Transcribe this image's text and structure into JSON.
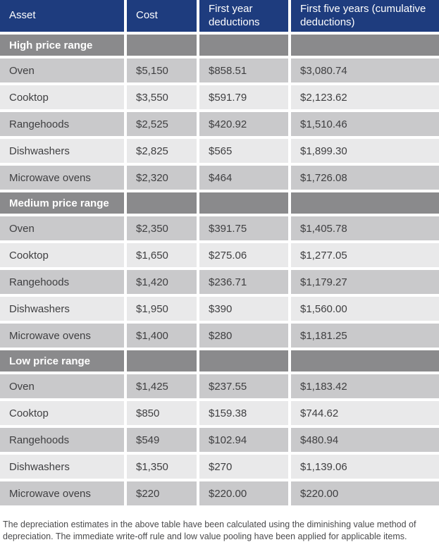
{
  "table": {
    "columns": [
      "Asset",
      "Cost",
      "First year deductions",
      "First five years (cumulative deductions)"
    ],
    "sections": [
      {
        "label": "High price range",
        "rows": [
          [
            "Oven",
            "$5,150",
            "$858.51",
            "$3,080.74"
          ],
          [
            "Cooktop",
            "$3,550",
            "$591.79",
            "$2,123.62"
          ],
          [
            "Rangehoods",
            "$2,525",
            "$420.92",
            "$1,510.46"
          ],
          [
            "Dishwashers",
            "$2,825",
            "$565",
            "$1,899.30"
          ],
          [
            "Microwave ovens",
            "$2,320",
            "$464",
            "$1,726.08"
          ]
        ]
      },
      {
        "label": "Medium price range",
        "rows": [
          [
            "Oven",
            "$2,350",
            "$391.75",
            "$1,405.78"
          ],
          [
            "Cooktop",
            "$1,650",
            "$275.06",
            "$1,277.05"
          ],
          [
            "Rangehoods",
            "$1,420",
            "$236.71",
            "$1,179.27"
          ],
          [
            "Dishwashers",
            "$1,950",
            "$390",
            "$1,560.00"
          ],
          [
            "Microwave ovens",
            "$1,400",
            "$280",
            "$1,181.25"
          ]
        ]
      },
      {
        "label": "Low price range",
        "rows": [
          [
            "Oven",
            "$1,425",
            "$237.55",
            "$1,183.42"
          ],
          [
            "Cooktop",
            "$850",
            "$159.38",
            "$744.62"
          ],
          [
            "Rangehoods",
            "$549",
            "$102.94",
            "$480.94"
          ],
          [
            "Dishwashers",
            "$1,350",
            "$270",
            "$1,139.06"
          ],
          [
            "Microwave ovens",
            "$220",
            "$220.00",
            "$220.00"
          ]
        ]
      }
    ]
  },
  "footnote": "The depreciation estimates in the above table have been calculated using the diminishing value method of depreciation. The immediate write-off rule and low value pooling have been applied for applicable items.",
  "colors": {
    "header_bg": "#1e3c7e",
    "header_text": "#ffffff",
    "section_bg": "#8a8a8c",
    "section_text": "#ffffff",
    "row_dark": "#c9c9cb",
    "row_light": "#e9e9ea",
    "cell_text": "#3f3f41",
    "footnote_text": "#4a4a4c"
  }
}
